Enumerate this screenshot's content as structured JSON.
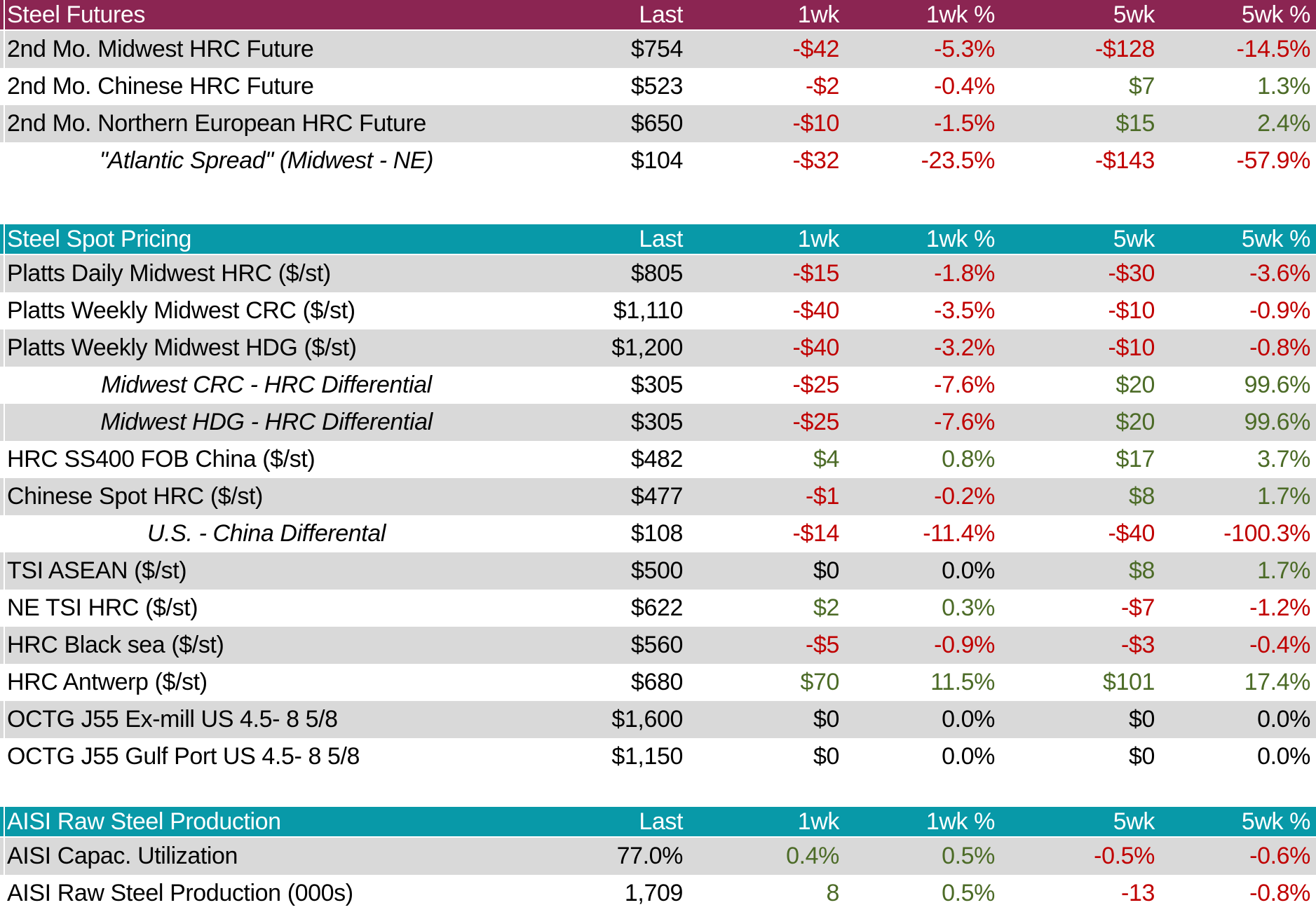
{
  "colors": {
    "futures_header_bg": "#8B2552",
    "spot_header_bg": "#0899A8",
    "production_header_bg": "#0899A8",
    "header_text": "#FFFFFF",
    "negative_value": "#C00000",
    "positive_value": "#4C6B27",
    "neutral_value": "#000000",
    "row_stripe": "#D9D9D9"
  },
  "chart_data": [
    {
      "type": "table",
      "title": "Steel Futures",
      "header_bg": "#8B2552",
      "columns": [
        "Last",
        "1wk",
        "1wk %",
        "5wk",
        "5wk %"
      ],
      "rows": [
        {
          "label": "2nd Mo. Midwest HRC Future",
          "italic": false,
          "values": [
            "$754",
            "-$42",
            "-5.3%",
            "-$128",
            "-14.5%"
          ],
          "value_colors": [
            "neu",
            "neg",
            "neg",
            "neg",
            "neg"
          ]
        },
        {
          "label": "2nd Mo. Chinese HRC Future",
          "italic": false,
          "values": [
            "$523",
            "-$2",
            "-0.4%",
            "$7",
            "1.3%"
          ],
          "value_colors": [
            "neu",
            "neg",
            "neg",
            "pos",
            "pos"
          ]
        },
        {
          "label": "2nd Mo. Northern European HRC Future",
          "italic": false,
          "values": [
            "$650",
            "-$10",
            "-1.5%",
            "$15",
            "2.4%"
          ],
          "value_colors": [
            "neu",
            "neg",
            "neg",
            "pos",
            "pos"
          ]
        },
        {
          "label": "\"Atlantic Spread\" (Midwest - NE)",
          "italic": true,
          "values": [
            "$104",
            "-$32",
            "-23.5%",
            "-$143",
            "-57.9%"
          ],
          "value_colors": [
            "neu",
            "neg",
            "neg",
            "neg",
            "neg"
          ]
        }
      ]
    },
    {
      "type": "table",
      "title": "Steel Spot Pricing",
      "header_bg": "#0899A8",
      "columns": [
        "Last",
        "1wk",
        "1wk %",
        "5wk",
        "5wk %"
      ],
      "rows": [
        {
          "label": "Platts Daily Midwest HRC ($/st)",
          "italic": false,
          "values": [
            "$805",
            "-$15",
            "-1.8%",
            "-$30",
            "-3.6%"
          ],
          "value_colors": [
            "neu",
            "neg",
            "neg",
            "neg",
            "neg"
          ]
        },
        {
          "label": "Platts Weekly Midwest CRC ($/st)",
          "italic": false,
          "values": [
            "$1,110",
            "-$40",
            "-3.5%",
            "-$10",
            "-0.9%"
          ],
          "value_colors": [
            "neu",
            "neg",
            "neg",
            "neg",
            "neg"
          ]
        },
        {
          "label": "Platts Weekly Midwest HDG ($/st)",
          "italic": false,
          "values": [
            "$1,200",
            "-$40",
            "-3.2%",
            "-$10",
            "-0.8%"
          ],
          "value_colors": [
            "neu",
            "neg",
            "neg",
            "neg",
            "neg"
          ]
        },
        {
          "label": "Midwest CRC - HRC Differential",
          "italic": true,
          "values": [
            "$305",
            "-$25",
            "-7.6%",
            "$20",
            "99.6%"
          ],
          "value_colors": [
            "neu",
            "neg",
            "neg",
            "pos",
            "pos"
          ]
        },
        {
          "label": "Midwest HDG - HRC Differential",
          "italic": true,
          "values": [
            "$305",
            "-$25",
            "-7.6%",
            "$20",
            "99.6%"
          ],
          "value_colors": [
            "neu",
            "neg",
            "neg",
            "pos",
            "pos"
          ]
        },
        {
          "label": "HRC SS400 FOB China ($/st)",
          "italic": false,
          "values": [
            "$482",
            "$4",
            "0.8%",
            "$17",
            "3.7%"
          ],
          "value_colors": [
            "neu",
            "pos",
            "pos",
            "pos",
            "pos"
          ]
        },
        {
          "label": "Chinese Spot HRC ($/st)",
          "italic": false,
          "values": [
            "$477",
            "-$1",
            "-0.2%",
            "$8",
            "1.7%"
          ],
          "value_colors": [
            "neu",
            "neg",
            "neg",
            "pos",
            "pos"
          ]
        },
        {
          "label": "U.S. - China Differental",
          "italic": true,
          "values": [
            "$108",
            "-$14",
            "-11.4%",
            "-$40",
            "-100.3%"
          ],
          "value_colors": [
            "neu",
            "neg",
            "neg",
            "neg",
            "neg"
          ]
        },
        {
          "label": "TSI ASEAN ($/st)",
          "italic": false,
          "values": [
            "$500",
            "$0",
            "0.0%",
            "$8",
            "1.7%"
          ],
          "value_colors": [
            "neu",
            "neu",
            "neu",
            "pos",
            "pos"
          ]
        },
        {
          "label": "NE TSI HRC ($/st)",
          "italic": false,
          "values": [
            "$622",
            "$2",
            "0.3%",
            "-$7",
            "-1.2%"
          ],
          "value_colors": [
            "neu",
            "pos",
            "pos",
            "neg",
            "neg"
          ]
        },
        {
          "label": "HRC Black sea ($/st)",
          "italic": false,
          "values": [
            "$560",
            "-$5",
            "-0.9%",
            "-$3",
            "-0.4%"
          ],
          "value_colors": [
            "neu",
            "neg",
            "neg",
            "neg",
            "neg"
          ]
        },
        {
          "label": "HRC Antwerp ($/st)",
          "italic": false,
          "values": [
            "$680",
            "$70",
            "11.5%",
            "$101",
            "17.4%"
          ],
          "value_colors": [
            "neu",
            "pos",
            "pos",
            "pos",
            "pos"
          ]
        },
        {
          "label": "OCTG J55 Ex-mill US 4.5- 8 5/8",
          "italic": false,
          "values": [
            "$1,600",
            "$0",
            "0.0%",
            "$0",
            "0.0%"
          ],
          "value_colors": [
            "neu",
            "neu",
            "neu",
            "neu",
            "neu"
          ]
        },
        {
          "label": "OCTG J55 Gulf Port US 4.5- 8 5/8",
          "italic": false,
          "values": [
            "$1,150",
            "$0",
            "0.0%",
            "$0",
            "0.0%"
          ],
          "value_colors": [
            "neu",
            "neu",
            "neu",
            "neu",
            "neu"
          ]
        }
      ]
    },
    {
      "type": "table",
      "title": "AISI Raw Steel Production",
      "header_bg": "#0899A8",
      "columns": [
        "Last",
        "1wk",
        "1wk %",
        "5wk",
        "5wk %"
      ],
      "rows": [
        {
          "label": "AISI Capac. Utilization",
          "italic": false,
          "values": [
            "77.0%",
            "0.4%",
            "0.5%",
            "-0.5%",
            "-0.6%"
          ],
          "value_colors": [
            "neu",
            "pos",
            "pos",
            "neg",
            "neg"
          ]
        },
        {
          "label": "AISI Raw Steel Production (000s)",
          "italic": false,
          "values": [
            "1,709",
            "8",
            "0.5%",
            "-13",
            "-0.8%"
          ],
          "value_colors": [
            "neu",
            "pos",
            "pos",
            "neg",
            "neg"
          ]
        }
      ]
    }
  ]
}
